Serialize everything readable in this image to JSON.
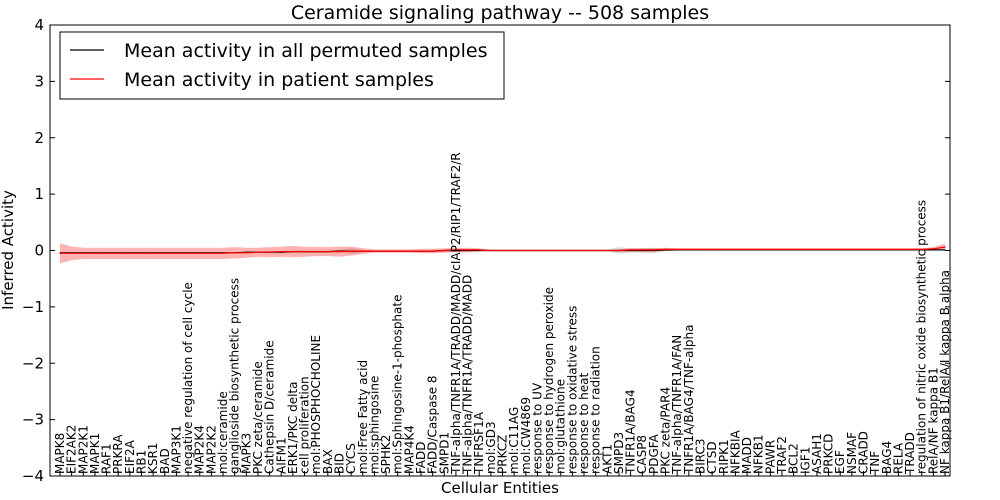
{
  "chart_data": {
    "type": "line",
    "title": "Ceramide signaling pathway -- 508 samples",
    "xlabel": "Cellular Entities",
    "ylabel": "Inferred Activity",
    "ylim": [
      -4,
      4
    ],
    "yticks": [
      -4,
      -3,
      -2,
      -1,
      0,
      1,
      2,
      3,
      4
    ],
    "grid": false,
    "legend_position": "top-left",
    "categories": [
      "MAPK8",
      "EIF2AK2",
      "MAP2K1",
      "MAPK1",
      "RAF1",
      "PRKRA",
      "EIF2A",
      "RB1",
      "KSR1",
      "BAD",
      "MAP3K1",
      "negative regulation of cell cycle",
      "MAP2K4",
      "MAP2K2",
      "mol:ceramide",
      "ganglioside biosynthetic process",
      "MAPK3",
      "PKC zeta/ceramide",
      "Cathepsin D/ceramide",
      "AIFM1",
      "ERK1/PKC delta",
      "cell proliferation",
      "mol:PHOSPHOCHOLINE",
      "BAX",
      "BID",
      "CYCS",
      "mol:Free Fatty acid",
      "mol:sphingosine",
      "SPHK2",
      "mol:Sphingosine-1-phosphate",
      "MAP4K4",
      "FADD",
      "FADD/Caspase 8",
      "SMPD1",
      "TNF-alpha/TNFR1A/TRADD/MADD/cIAP2/RIP1/TRAF2/R",
      "TNF-alpha/TNFR1A/TRADD/MADD",
      "TNFRSF1A",
      "mol:GD3",
      "PRKCZ",
      "mol:C11AG",
      "mol:CW4869",
      "response to UV",
      "response to hydrogen peroxide",
      "mol:glutathione",
      "response to oxidative stress",
      "response to heat",
      "response to radiation",
      "AKT1",
      "SMPD3",
      "TNFR1A/BAG4",
      "CASP8",
      "PDGFA",
      "PKC zeta/PAR4",
      "TNF-alpha/TNFR1A/FAN",
      "TNFR1A/BAG4/TNF-alpha",
      "BIRC3",
      "CTSD",
      "RIPK1",
      "NFKBIA",
      "MADD",
      "NFKB1",
      "PAWR",
      "TRAF2",
      "BCL2",
      "IGF1",
      "ASAH1",
      "PRKCD",
      "EGF",
      "NSMAF",
      "CRADD",
      "TNF",
      "BAG4",
      "RELA",
      "TRADD",
      "regulation of nitric oxide biosynthetic process",
      "RelA/NF kappa B1",
      "NF kappa B1/RelA/I kappa B alpha"
    ],
    "series": [
      {
        "name": "Mean activity in all permuted samples",
        "color": "#000000",
        "values": [
          -0.04,
          -0.04,
          -0.04,
          -0.04,
          -0.04,
          -0.04,
          -0.04,
          -0.04,
          -0.04,
          -0.04,
          -0.04,
          -0.04,
          -0.04,
          -0.04,
          -0.04,
          -0.04,
          -0.03,
          -0.03,
          -0.03,
          -0.03,
          -0.02,
          -0.02,
          -0.02,
          -0.02,
          -0.01,
          -0.01,
          -0.01,
          -0.01,
          -0.01,
          -0.01,
          -0.01,
          -0.01,
          -0.01,
          0.0,
          0.0,
          0.0,
          0.0,
          0.0,
          0.0,
          0.0,
          0.0,
          0.0,
          0.0,
          0.0,
          0.0,
          0.0,
          0.0,
          0.0,
          0.0,
          0.0,
          0.0,
          0.0,
          0.01,
          0.01,
          0.01,
          0.01,
          0.01,
          0.01,
          0.01,
          0.01,
          0.01,
          0.01,
          0.01,
          0.01,
          0.01,
          0.01,
          0.01,
          0.01,
          0.01,
          0.01,
          0.01,
          0.01,
          0.01,
          0.01,
          0.01,
          0.01,
          0.01
        ],
        "band": [
          0.01,
          0.01,
          0.01,
          0.01,
          0.01,
          0.01,
          0.01,
          0.01,
          0.01,
          0.01,
          0.01,
          0.01,
          0.01,
          0.01,
          0.01,
          0.01,
          0.01,
          0.01,
          0.02,
          0.02,
          0.02,
          0.02,
          0.02,
          0.02,
          0.02,
          0.05,
          0.02,
          0.01,
          0.01,
          0.01,
          0.01,
          0.01,
          0.01,
          0.01,
          0.03,
          0.02,
          0.01,
          0.01,
          0.01,
          0.01,
          0.01,
          0.01,
          0.01,
          0.01,
          0.01,
          0.01,
          0.01,
          0.01,
          0.06,
          0.04,
          0.04,
          0.05,
          0.02,
          0.01,
          0.01,
          0.01,
          0.01,
          0.01,
          0.01,
          0.01,
          0.01,
          0.01,
          0.01,
          0.01,
          0.01,
          0.01,
          0.01,
          0.01,
          0.01,
          0.01,
          0.01,
          0.01,
          0.01,
          0.01,
          0.01,
          0.01,
          0.01
        ]
      },
      {
        "name": "Mean activity in patient samples",
        "color": "#ff0000",
        "values": [
          -0.05,
          -0.05,
          -0.05,
          -0.05,
          -0.05,
          -0.05,
          -0.05,
          -0.05,
          -0.05,
          -0.05,
          -0.05,
          -0.05,
          -0.05,
          -0.05,
          -0.05,
          -0.04,
          -0.04,
          -0.03,
          -0.03,
          -0.02,
          -0.02,
          -0.02,
          -0.02,
          -0.02,
          -0.02,
          -0.01,
          -0.01,
          -0.01,
          -0.01,
          -0.01,
          -0.01,
          -0.01,
          -0.01,
          0.0,
          0.01,
          0.01,
          0.01,
          0.0,
          0.0,
          0.0,
          0.0,
          0.0,
          0.0,
          0.0,
          0.0,
          0.0,
          0.0,
          0.0,
          0.0,
          0.01,
          0.01,
          0.01,
          0.02,
          0.02,
          0.02,
          0.02,
          0.02,
          0.02,
          0.02,
          0.02,
          0.02,
          0.02,
          0.02,
          0.02,
          0.02,
          0.02,
          0.02,
          0.02,
          0.02,
          0.02,
          0.02,
          0.02,
          0.02,
          0.02,
          0.02,
          0.03,
          0.06
        ],
        "band": [
          0.18,
          0.12,
          0.1,
          0.1,
          0.1,
          0.1,
          0.1,
          0.1,
          0.1,
          0.1,
          0.1,
          0.1,
          0.1,
          0.1,
          0.1,
          0.1,
          0.09,
          0.08,
          0.09,
          0.09,
          0.1,
          0.09,
          0.08,
          0.08,
          0.09,
          0.08,
          0.05,
          0.03,
          0.03,
          0.03,
          0.03,
          0.04,
          0.04,
          0.04,
          0.04,
          0.04,
          0.03,
          0.01,
          0.01,
          0.01,
          0.01,
          0.01,
          0.01,
          0.01,
          0.01,
          0.01,
          0.01,
          0.01,
          0.02,
          0.03,
          0.03,
          0.03,
          0.03,
          0.02,
          0.02,
          0.02,
          0.02,
          0.02,
          0.02,
          0.02,
          0.02,
          0.02,
          0.02,
          0.02,
          0.02,
          0.02,
          0.02,
          0.02,
          0.02,
          0.02,
          0.02,
          0.02,
          0.02,
          0.02,
          0.02,
          0.03,
          0.06
        ]
      }
    ]
  }
}
